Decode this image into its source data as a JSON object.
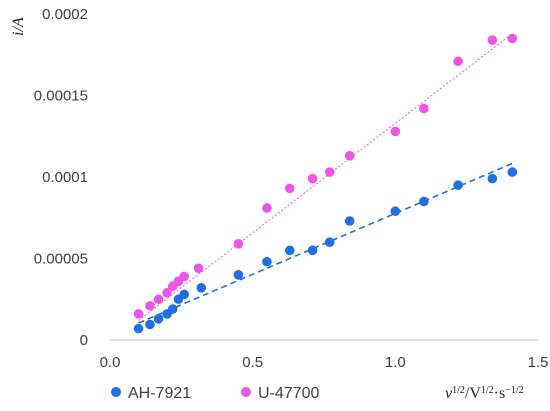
{
  "chart_data": {
    "type": "scatter",
    "ylabel": "i/A",
    "xlabel": "ν1/2/V1/2·s−1/2",
    "xlabel_parts": {
      "nu": "ν",
      "exp1": "1/2",
      "mid": "/V",
      "exp2": "1/2",
      "dot": "·s",
      "exp3": "−1/2"
    },
    "xlim": [
      0,
      1.5
    ],
    "ylim": [
      0,
      0.0002
    ],
    "xticks": [
      0.0,
      0.5,
      1.0,
      1.5
    ],
    "xtick_labels": [
      "0.0",
      "0.5",
      "1.0",
      "1.5"
    ],
    "yticks": [
      0,
      5e-05,
      0.0001,
      0.00015,
      0.0002
    ],
    "ytick_labels": [
      "0",
      "0.00005",
      "0.0001",
      "0.00015",
      "0.0002"
    ],
    "grid": false,
    "legend_position": "bottom",
    "series": [
      {
        "name": "AH-7921",
        "color": "#1F6FE5",
        "marker": "circle",
        "trendline": {
          "style": "dashed",
          "x": [
            0.1,
            1.41
          ],
          "y": [
            1.04e-05,
            0.0001083
          ]
        },
        "x": [
          0.1,
          0.14,
          0.17,
          0.2,
          0.22,
          0.24,
          0.26,
          0.32,
          0.45,
          0.55,
          0.63,
          0.71,
          0.77,
          0.84,
          1.0,
          1.1,
          1.22,
          1.34,
          1.41
        ],
        "y": [
          7e-06,
          9.5e-06,
          1.3e-05,
          1.6e-05,
          1.9e-05,
          2.5e-05,
          2.8e-05,
          3.2e-05,
          4e-05,
          4.8e-05,
          5.5e-05,
          5.5e-05,
          6e-05,
          7.3e-05,
          7.9e-05,
          8.5e-05,
          9.5e-05,
          9.9e-05,
          0.000103
        ]
      },
      {
        "name": "U-47700",
        "color": "#EE55E6",
        "marker": "circle",
        "trendline": {
          "style": "dotted",
          "x": [
            0.1,
            1.41
          ],
          "y": [
            1.2e-05,
            0.000188
          ]
        },
        "x": [
          0.1,
          0.14,
          0.17,
          0.2,
          0.22,
          0.24,
          0.26,
          0.31,
          0.45,
          0.55,
          0.63,
          0.71,
          0.77,
          0.84,
          1.0,
          1.1,
          1.22,
          1.34,
          1.41
        ],
        "y": [
          1.6e-05,
          2.1e-05,
          2.5e-05,
          2.9e-05,
          3.3e-05,
          3.6e-05,
          3.9e-05,
          4.4e-05,
          5.9e-05,
          8.1e-05,
          9.3e-05,
          9.9e-05,
          0.000103,
          0.000113,
          0.000128,
          0.000142,
          0.000171,
          0.000184,
          0.000185
        ]
      }
    ]
  }
}
